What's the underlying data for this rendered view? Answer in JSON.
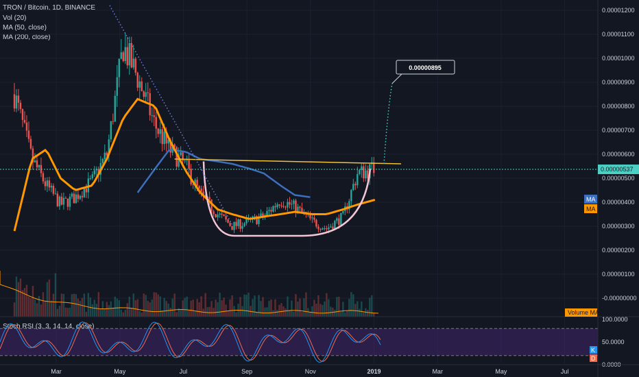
{
  "header": {
    "title": "TRON / Bitcoin, 1D, BINANCE",
    "vol_label": "Vol (20)",
    "ma50_label": "MA (50, close)",
    "ma200_label": "MA (200, close)",
    "rsi_label": "Stoch RSI (3, 3, 14, 14, close)"
  },
  "price_axis": {
    "ticks": [
      "0.00001200",
      "0.00001100",
      "0.00001000",
      "0.00000900",
      "0.00000800",
      "0.00000700",
      "0.00000600",
      "0.00000500",
      "0.00000400",
      "0.00000300",
      "0.00000200",
      "0.00000100",
      "-0.00000000"
    ],
    "current_price": "0.00000537",
    "ma_badge_1": "MA",
    "ma_badge_2": "MA",
    "volume_ma_label": "Volume MA"
  },
  "rsi_axis": {
    "ticks": [
      "100.0000",
      "50.0000",
      "0.0000"
    ],
    "k_badge": "K",
    "d_badge": "D"
  },
  "time_axis": [
    "Mar",
    "May",
    "Jul",
    "Sep",
    "Nov",
    "2019",
    "Mar",
    "May",
    "Jul"
  ],
  "annotation": {
    "target_price": "0.00000895"
  },
  "colors": {
    "background": "#131722",
    "up": "#26a69a",
    "down": "#ef5350",
    "ma50": "#ff9800",
    "ma200": "#3d6fbf",
    "resistance": "#f0c23b",
    "cup": "#f2c6d4",
    "price_line": "#4dd0c4",
    "rsi_k": "#2196f3",
    "rsi_d": "#ef6c4f",
    "rsi_band": "#4a2a7a"
  },
  "chart_data": {
    "type": "candlestick",
    "symbol": "TRON / Bitcoin",
    "interval": "1D",
    "exchange": "BINANCE",
    "x": [
      "2018-01-15",
      "2018-02-01",
      "2018-02-15",
      "2018-03-01",
      "2018-03-15",
      "2018-04-01",
      "2018-04-15",
      "2018-05-01",
      "2018-05-15",
      "2018-06-01",
      "2018-06-15",
      "2018-07-01",
      "2018-07-15",
      "2018-08-01",
      "2018-08-15",
      "2018-09-01",
      "2018-09-15",
      "2018-10-01",
      "2018-10-15",
      "2018-11-01",
      "2018-11-15",
      "2018-12-01",
      "2018-12-15",
      "2019-01-01"
    ],
    "close": [
      8.5e-06,
      5.8e-06,
      4.7e-06,
      3.9e-06,
      4.2e-06,
      4.9e-06,
      6e-06,
      1.05e-05,
      9.2e-06,
      7.2e-06,
      6.2e-06,
      5.5e-06,
      4.3e-06,
      3.5e-06,
      3e-06,
      3.2e-06,
      3.4e-06,
      4.1e-06,
      3.8e-06,
      3.2e-06,
      2.9e-06,
      3.4e-06,
      5.2e-06,
      5.4e-06
    ],
    "ma50": [
      2.8e-06,
      5.8e-06,
      6.2e-06,
      5e-06,
      4.5e-06,
      4.7e-06,
      5.8e-06,
      7.5e-06,
      8.3e-06,
      8e-06,
      6.6e-06,
      5.3e-06,
      4.4e-06,
      3.7e-06,
      3.5e-06,
      3.3e-06,
      3.4e-06,
      3.5e-06,
      3.6e-06,
      3.5e-06,
      3.5e-06,
      3.7e-06,
      3.9e-06,
      4.1e-06
    ],
    "ma200": [
      null,
      null,
      null,
      null,
      null,
      null,
      null,
      null,
      4.4e-06,
      5.4e-06,
      6.2e-06,
      6.1e-06,
      5.8e-06,
      5.7e-06,
      5.6e-06,
      5.4e-06,
      5.2e-06,
      4.7e-06,
      4.3e-06,
      4.2e-06,
      null,
      null,
      null,
      null
    ],
    "resistance_line": {
      "x": [
        "2018-06-20",
        "2019-01-05"
      ],
      "y": [
        5.8e-06,
        5.6e-06
      ]
    },
    "cup_bottom": 2.6e-06,
    "projection": {
      "y": 8.95e-06
    },
    "volume_ma_label": "Volume MA",
    "ylim": [
      -2e-07,
      1.25e-05
    ],
    "rsi_ylim": [
      0,
      100
    ]
  }
}
